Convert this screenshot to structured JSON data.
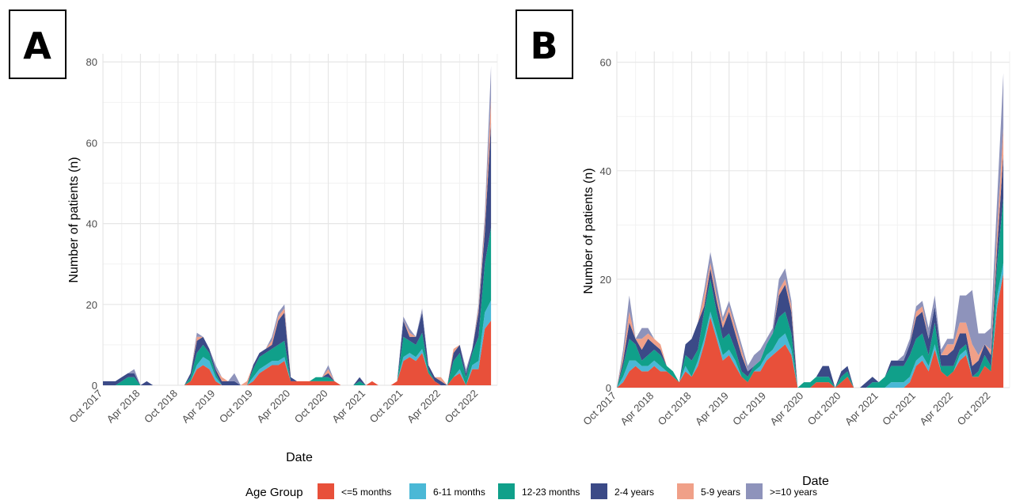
{
  "panels": [
    {
      "label": "A"
    },
    {
      "label": "B"
    }
  ],
  "legend": {
    "title": "Age Group"
  },
  "colors": {
    "le5m": "#e8503a",
    "m6_11": "#4ab8d6",
    "m12_23": "#10a08a",
    "y2_4": "#3b4a87",
    "y5_9": "#f0a088",
    "ge10": "#8e93bb"
  },
  "chart_data": [
    {
      "type": "area",
      "stacked": true,
      "panel": "A",
      "xlabel": "Date",
      "ylabel": "Number of patients (n)",
      "ylim": [
        0,
        82
      ],
      "yticks": [
        0,
        20,
        40,
        60,
        80
      ],
      "xticks": [
        "Oct 2017",
        "Apr 2018",
        "Oct 2018",
        "Apr 2019",
        "Oct 2019",
        "Apr 2020",
        "Oct 2020",
        "Apr 2021",
        "Oct 2021",
        "Apr 2022",
        "Oct 2022"
      ],
      "xlim": [
        "2017-10",
        "2023-01"
      ],
      "grid": true,
      "x": [
        "2017-10",
        "2017-11",
        "2017-12",
        "2018-01",
        "2018-02",
        "2018-03",
        "2018-04",
        "2018-05",
        "2018-06",
        "2018-07",
        "2018-08",
        "2018-09",
        "2018-10",
        "2018-11",
        "2018-12",
        "2019-01",
        "2019-02",
        "2019-03",
        "2019-04",
        "2019-05",
        "2019-06",
        "2019-07",
        "2019-08",
        "2019-09",
        "2019-10",
        "2019-11",
        "2019-12",
        "2020-01",
        "2020-02",
        "2020-03",
        "2020-04",
        "2020-05",
        "2020-06",
        "2020-07",
        "2020-08",
        "2020-09",
        "2020-10",
        "2020-11",
        "2020-12",
        "2021-01",
        "2021-02",
        "2021-03",
        "2021-04",
        "2021-05",
        "2021-06",
        "2021-07",
        "2021-08",
        "2021-09",
        "2021-10",
        "2021-11",
        "2021-12",
        "2022-01",
        "2022-02",
        "2022-03",
        "2022-04",
        "2022-05",
        "2022-06",
        "2022-07",
        "2022-08",
        "2022-09",
        "2022-10",
        "2022-11",
        "2022-12"
      ],
      "series": [
        {
          "name": "<=5 months",
          "key": "le5m",
          "values": [
            0,
            0,
            0,
            0,
            0,
            0,
            0,
            0,
            0,
            0,
            0,
            0,
            0,
            0,
            1,
            4,
            5,
            4,
            1,
            0,
            0,
            0,
            0,
            0,
            1,
            3,
            4,
            5,
            5,
            6,
            1,
            1,
            1,
            1,
            1,
            1,
            1,
            1,
            0,
            0,
            0,
            0,
            0,
            1,
            0,
            0,
            0,
            1,
            6,
            7,
            6,
            8,
            3,
            1,
            0,
            0,
            2,
            3,
            0,
            4,
            4,
            14,
            16
          ]
        },
        {
          "name": "6-11 months",
          "key": "m6_11",
          "values": [
            0,
            0,
            0,
            0,
            0,
            0,
            0,
            0,
            0,
            0,
            0,
            0,
            0,
            0,
            0,
            1,
            2,
            2,
            1,
            0,
            0,
            0,
            0,
            0,
            1,
            1,
            1,
            1,
            1,
            1,
            0,
            0,
            0,
            0,
            0,
            0,
            0,
            0,
            0,
            0,
            0,
            0,
            0,
            0,
            0,
            0,
            0,
            0,
            1,
            1,
            1,
            1,
            0,
            0,
            0,
            0,
            0,
            1,
            0,
            1,
            2,
            4,
            5
          ]
        },
        {
          "name": "12-23 months",
          "key": "m12_23",
          "values": [
            0,
            0,
            0,
            1,
            2,
            2,
            0,
            0,
            0,
            0,
            0,
            0,
            0,
            0,
            1,
            3,
            3,
            2,
            1,
            0,
            0,
            0,
            0,
            0,
            2,
            3,
            3,
            3,
            4,
            4,
            0,
            0,
            0,
            0,
            1,
            1,
            1,
            0,
            0,
            0,
            0,
            1,
            0,
            0,
            0,
            0,
            0,
            0,
            5,
            3,
            3,
            4,
            1,
            0,
            0,
            0,
            4,
            4,
            2,
            3,
            6,
            12,
            18
          ]
        },
        {
          "name": "2-4 years",
          "key": "y2_4",
          "values": [
            1,
            1,
            1,
            1,
            1,
            1,
            0,
            1,
            0,
            0,
            0,
            0,
            0,
            0,
            1,
            3,
            2,
            1,
            1,
            1,
            1,
            1,
            0,
            0,
            1,
            1,
            1,
            1,
            6,
            7,
            1,
            0,
            0,
            0,
            0,
            0,
            1,
            0,
            0,
            0,
            0,
            1,
            0,
            0,
            0,
            0,
            0,
            0,
            4,
            1,
            2,
            5,
            1,
            1,
            1,
            0,
            2,
            2,
            1,
            1,
            6,
            8,
            26
          ]
        },
        {
          "name": "5-9 years",
          "key": "y5_9",
          "values": [
            0,
            0,
            0,
            0,
            0,
            0,
            0,
            0,
            0,
            0,
            0,
            0,
            0,
            0,
            0,
            1,
            0,
            0,
            0,
            1,
            0,
            0,
            0,
            1,
            0,
            0,
            0,
            1,
            1,
            1,
            0,
            0,
            0,
            0,
            0,
            0,
            1,
            0,
            0,
            0,
            0,
            0,
            0,
            0,
            0,
            0,
            0,
            0,
            0,
            1,
            0,
            0,
            0,
            0,
            1,
            0,
            1,
            0,
            0,
            0,
            1,
            2,
            6
          ]
        },
        {
          "name": ">=10 years",
          "key": "ge10",
          "values": [
            0,
            0,
            0,
            0,
            0,
            1,
            0,
            0,
            0,
            0,
            0,
            0,
            0,
            0,
            0,
            1,
            0,
            0,
            1,
            0,
            0,
            2,
            0,
            0,
            0,
            0,
            0,
            1,
            1,
            1,
            0,
            0,
            0,
            0,
            0,
            0,
            1,
            0,
            0,
            0,
            0,
            0,
            0,
            0,
            0,
            0,
            0,
            0,
            1,
            1,
            0,
            1,
            0,
            0,
            0,
            0,
            0,
            0,
            1,
            0,
            1,
            2,
            8
          ]
        }
      ]
    },
    {
      "type": "area",
      "stacked": true,
      "panel": "B",
      "xlabel": "Date",
      "ylabel": "Number of patients (n)",
      "ylim": [
        0,
        62
      ],
      "yticks": [
        0,
        20,
        40,
        60
      ],
      "xticks": [
        "Oct 2017",
        "Apr 2018",
        "Oct 2018",
        "Apr 2019",
        "Oct 2019",
        "Apr 2020",
        "Oct 2020",
        "Apr 2021",
        "Oct 2021",
        "Apr 2022",
        "Oct 2022"
      ],
      "xlim": [
        "2017-10",
        "2023-01"
      ],
      "grid": true,
      "x": [
        "2017-10",
        "2017-11",
        "2017-12",
        "2018-01",
        "2018-02",
        "2018-03",
        "2018-04",
        "2018-05",
        "2018-06",
        "2018-07",
        "2018-08",
        "2018-09",
        "2018-10",
        "2018-11",
        "2018-12",
        "2019-01",
        "2019-02",
        "2019-03",
        "2019-04",
        "2019-05",
        "2019-06",
        "2019-07",
        "2019-08",
        "2019-09",
        "2019-10",
        "2019-11",
        "2019-12",
        "2020-01",
        "2020-02",
        "2020-03",
        "2020-04",
        "2020-05",
        "2020-06",
        "2020-07",
        "2020-08",
        "2020-09",
        "2020-10",
        "2020-11",
        "2020-12",
        "2021-01",
        "2021-02",
        "2021-03",
        "2021-04",
        "2021-05",
        "2021-06",
        "2021-07",
        "2021-08",
        "2021-09",
        "2021-10",
        "2021-11",
        "2021-12",
        "2022-01",
        "2022-02",
        "2022-03",
        "2022-04",
        "2022-05",
        "2022-06",
        "2022-07",
        "2022-08",
        "2022-09",
        "2022-10",
        "2022-11",
        "2022-12"
      ],
      "series": [
        {
          "name": "<=5 months",
          "key": "le5m",
          "values": [
            0,
            1,
            3,
            4,
            3,
            3,
            4,
            3,
            3,
            2,
            1,
            3,
            2,
            4,
            8,
            13,
            9,
            5,
            6,
            4,
            2,
            1,
            3,
            3,
            5,
            6,
            7,
            8,
            6,
            0,
            0,
            0,
            1,
            1,
            1,
            0,
            1,
            2,
            0,
            0,
            0,
            0,
            0,
            0,
            0,
            0,
            0,
            1,
            4,
            5,
            3,
            7,
            3,
            2,
            3,
            5,
            6,
            2,
            2,
            4,
            3,
            15,
            21
          ]
        },
        {
          "name": "6-11 months",
          "key": "m6_11",
          "values": [
            0,
            1,
            2,
            1,
            1,
            1,
            1,
            1,
            0,
            0,
            0,
            1,
            0,
            1,
            1,
            1,
            1,
            1,
            1,
            1,
            0,
            0,
            0,
            1,
            1,
            1,
            2,
            2,
            1,
            0,
            0,
            0,
            0,
            0,
            0,
            0,
            0,
            0,
            0,
            0,
            0,
            0,
            0,
            0,
            1,
            1,
            1,
            1,
            1,
            1,
            1,
            1,
            0,
            0,
            0,
            1,
            1,
            0,
            0,
            0,
            0,
            2,
            2
          ]
        },
        {
          "name": "12-23 months",
          "key": "m12_23",
          "values": [
            0,
            2,
            4,
            3,
            1,
            2,
            2,
            2,
            1,
            1,
            0,
            2,
            3,
            2,
            5,
            6,
            4,
            3,
            3,
            2,
            1,
            1,
            1,
            1,
            2,
            3,
            4,
            4,
            3,
            0,
            1,
            1,
            1,
            1,
            1,
            0,
            1,
            1,
            0,
            0,
            0,
            1,
            1,
            2,
            3,
            3,
            3,
            4,
            4,
            4,
            2,
            4,
            1,
            2,
            1,
            1,
            1,
            0,
            1,
            2,
            1,
            6,
            12
          ]
        },
        {
          "name": "2-4 years",
          "key": "y2_4",
          "values": [
            0,
            1,
            3,
            1,
            2,
            3,
            1,
            1,
            0,
            0,
            0,
            2,
            4,
            5,
            1,
            2,
            2,
            2,
            4,
            3,
            3,
            1,
            0,
            0,
            0,
            0,
            4,
            5,
            4,
            0,
            0,
            0,
            0,
            2,
            2,
            0,
            1,
            1,
            0,
            0,
            1,
            1,
            0,
            0,
            1,
            1,
            1,
            2,
            4,
            4,
            3,
            3,
            2,
            2,
            3,
            3,
            2,
            2,
            2,
            2,
            2,
            3,
            8
          ]
        },
        {
          "name": "5-9 years",
          "key": "y5_9",
          "values": [
            0,
            1,
            2,
            0,
            2,
            1,
            1,
            1,
            0,
            0,
            0,
            0,
            0,
            0,
            2,
            1,
            1,
            1,
            1,
            1,
            1,
            0,
            0,
            0,
            0,
            0,
            1,
            1,
            1,
            0,
            0,
            0,
            0,
            0,
            0,
            0,
            0,
            0,
            0,
            0,
            0,
            0,
            0,
            0,
            0,
            0,
            0,
            0,
            1,
            1,
            0,
            0,
            0,
            2,
            1,
            2,
            2,
            4,
            1,
            0,
            1,
            3,
            5
          ]
        },
        {
          "name": ">=10 years",
          "key": "ge10",
          "values": [
            0,
            1,
            3,
            0,
            2,
            1,
            0,
            0,
            0,
            0,
            0,
            0,
            0,
            0,
            1,
            2,
            2,
            1,
            1,
            1,
            1,
            1,
            2,
            2,
            1,
            1,
            2,
            2,
            1,
            0,
            0,
            0,
            0,
            0,
            0,
            0,
            0,
            0,
            0,
            0,
            0,
            0,
            0,
            0,
            0,
            0,
            1,
            1,
            1,
            1,
            2,
            2,
            1,
            1,
            1,
            5,
            5,
            10,
            4,
            2,
            4,
            6,
            10
          ]
        }
      ]
    }
  ]
}
